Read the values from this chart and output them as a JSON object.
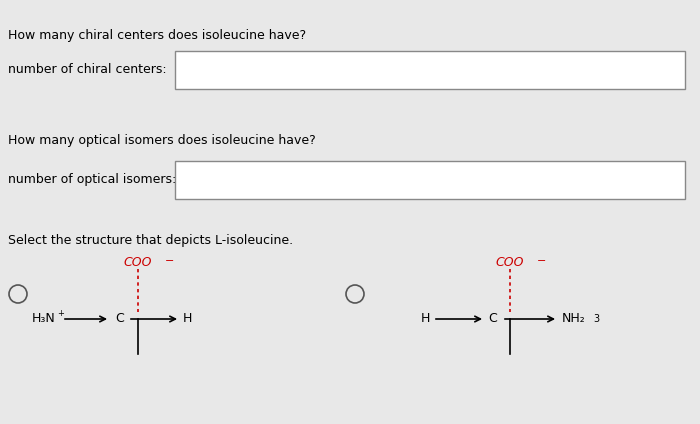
{
  "bg_color": "#e8e8e8",
  "text_color": "#000000",
  "red_color": "#cc0000",
  "title1": "How many chiral centers does isoleucine have?",
  "label1": "number of chiral centers:",
  "title2": "How many optical isomers does isoleucine have?",
  "label2": "number of optical isomers:",
  "select_text": "Select the structure that depicts L-isoleucine.",
  "box_color": "#ffffff",
  "box_edge_color": "#888888"
}
